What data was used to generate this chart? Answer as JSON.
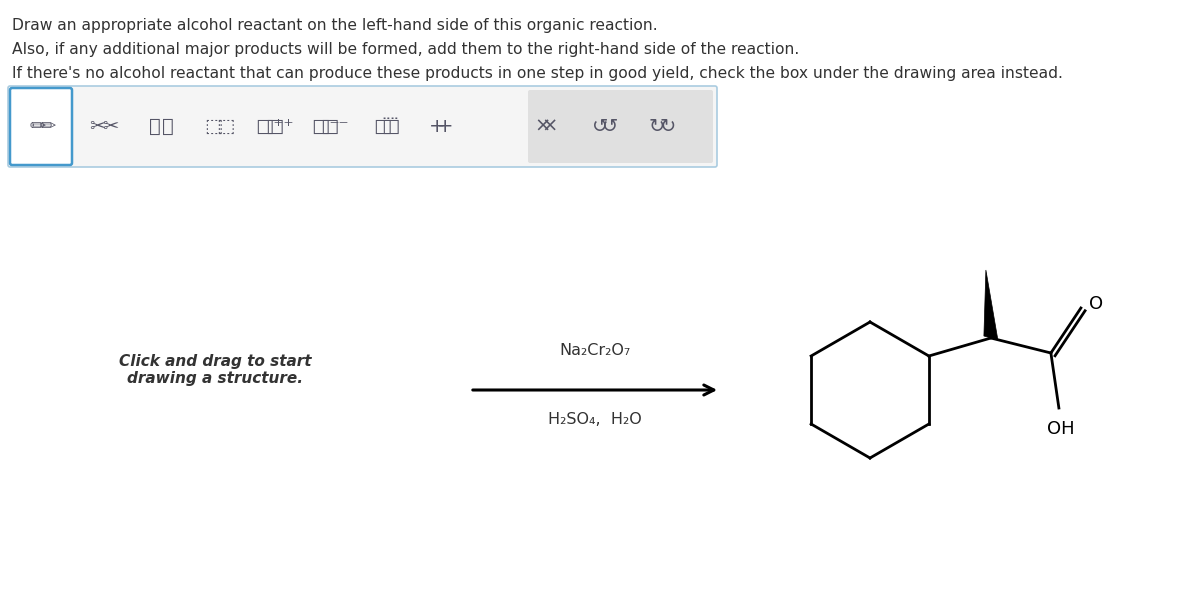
{
  "instructions": [
    "Draw an appropriate alcohol reactant on the left-hand side of this organic reaction.",
    "Also, if any additional major products will be formed, add them to the right-hand side of the reaction.",
    "If there's no alcohol reactant that can produce these products in one step in good yield, check the box under the drawing area instead."
  ],
  "click_drag_text": "Click and drag to start\ndrawing a structure.",
  "reagent_above": "Na₂Cr₂O₇",
  "reagent_below": "H₂SO₄,  H₂O",
  "text_color": "#333333",
  "background_color": "#ffffff"
}
